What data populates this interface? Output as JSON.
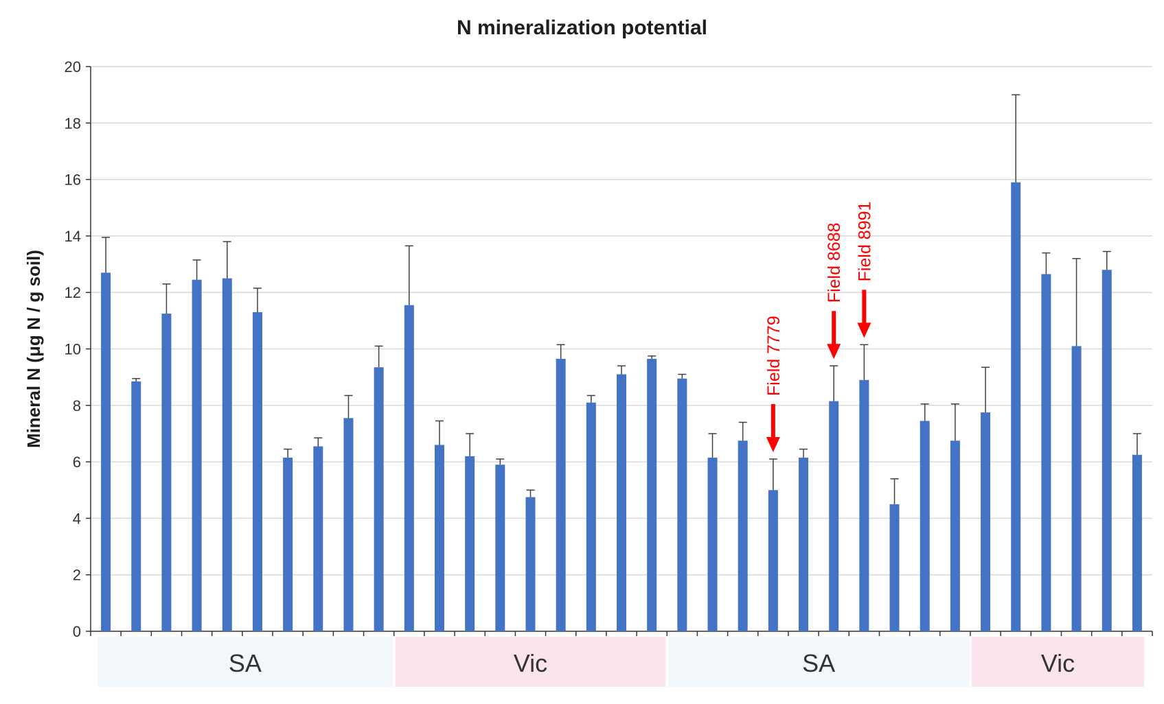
{
  "chart_data": {
    "type": "bar",
    "title": "N mineralization potential",
    "xlabel": "",
    "ylabel": "Mineral N (μg N / g soil)",
    "ylim": [
      0,
      20
    ],
    "yticks": [
      0,
      2,
      4,
      6,
      8,
      10,
      12,
      14,
      16,
      18,
      20
    ],
    "grid": true,
    "series": [
      {
        "values": [
          12.7,
          8.85,
          11.25,
          12.45,
          12.5,
          11.3,
          6.15,
          6.55,
          7.55,
          9.35,
          11.55,
          6.6,
          6.2,
          5.9,
          4.75,
          9.65,
          8.1,
          9.1,
          9.65,
          8.95,
          6.15,
          6.75,
          5.0,
          6.15,
          8.15,
          8.9,
          4.5,
          7.45,
          6.75,
          7.75,
          15.9,
          12.65,
          10.1,
          12.8,
          6.25
        ],
        "errors": [
          1.25,
          0.1,
          1.05,
          0.7,
          1.3,
          0.85,
          0.3,
          0.3,
          0.8,
          0.75,
          2.1,
          0.85,
          0.8,
          0.2,
          0.25,
          0.5,
          0.25,
          0.3,
          0.1,
          0.15,
          0.85,
          0.65,
          1.1,
          0.3,
          1.25,
          1.25,
          0.9,
          0.6,
          1.3,
          1.6,
          3.1,
          0.75,
          3.1,
          0.65,
          0.75
        ],
        "color": "#4472c4"
      }
    ],
    "groups": [
      {
        "label": "SA",
        "count": 10,
        "color": "#f2f7fc"
      },
      {
        "label": "Vic",
        "count": 9,
        "color": "#fce4ef"
      },
      {
        "label": "SA",
        "count": 10,
        "color": "#f2f7fc"
      },
      {
        "label": "Vic",
        "count": 6,
        "color": "#fce4ef"
      }
    ],
    "annotations": [
      {
        "label": "Field 7779",
        "bar_index": 22,
        "color": "#ff0000"
      },
      {
        "label": "Field 8688",
        "bar_index": 24,
        "color": "#ff0000"
      },
      {
        "label": "Field 8991",
        "bar_index": 25,
        "color": "#ff0000"
      }
    ],
    "axis_color": "#333333",
    "grid_color": "#d9d9d9",
    "error_bar_color": "#404040"
  }
}
